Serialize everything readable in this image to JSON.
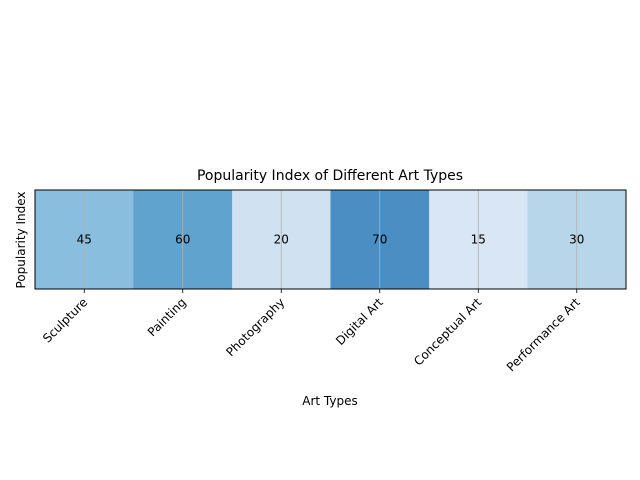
{
  "chart_data": {
    "type": "heatmap",
    "title": "Popularity Index of Different Art Types",
    "xlabel": "Art Types",
    "ylabel": "Popularity Index",
    "categories": [
      "Sculpture",
      "Painting",
      "Photography",
      "Digital Art",
      "Conceptual Art",
      "Performance Art"
    ],
    "values": [
      45,
      60,
      20,
      70,
      15,
      30
    ],
    "colormap": "Blues",
    "vmin": 0,
    "vmax": 100,
    "grid": true,
    "legend": "none"
  }
}
